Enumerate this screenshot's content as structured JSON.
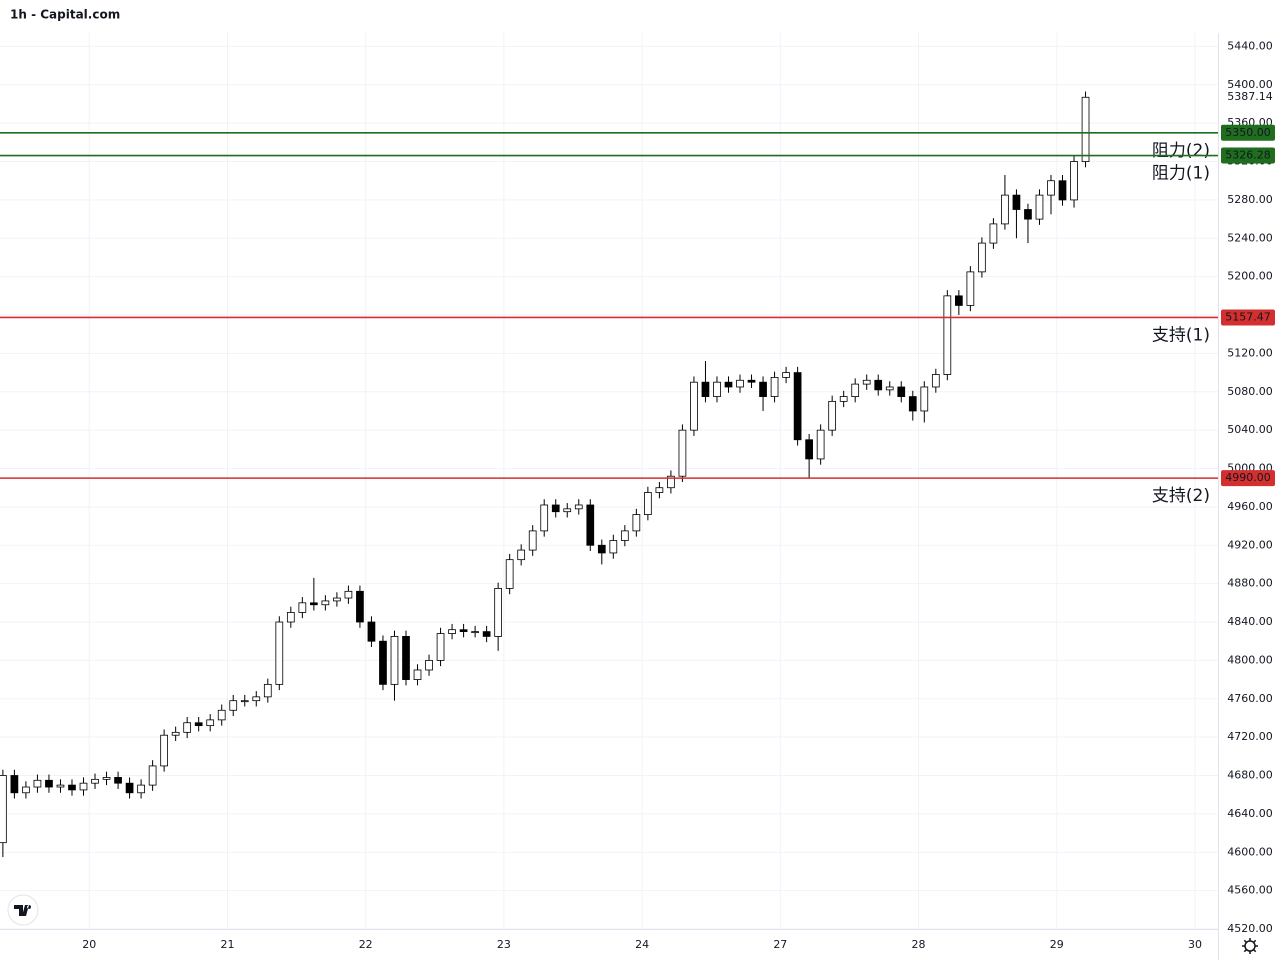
{
  "chart_data": {
    "type": "candlestick",
    "title": "1h - Capital.com",
    "up_color": "#ffffff",
    "down_color": "#000000",
    "wick_color": "#000000",
    "grid": true,
    "x": [
      -15,
      -13,
      -11,
      -9,
      -7,
      -5,
      -3,
      -1,
      1,
      3,
      5,
      7,
      9,
      11,
      13,
      15,
      17,
      19,
      21,
      23,
      25,
      27,
      29,
      31,
      33,
      35,
      37,
      39,
      41,
      43,
      45,
      47,
      49,
      51,
      53,
      55,
      57,
      59,
      61,
      63,
      65,
      67,
      69,
      71,
      73,
      75,
      77,
      79,
      81,
      83,
      85,
      87,
      89,
      91,
      93,
      95,
      97,
      99,
      101,
      103,
      105,
      107,
      109,
      111,
      113,
      115,
      117,
      119,
      121,
      123,
      125,
      127,
      129,
      131,
      133,
      135,
      137,
      139,
      141,
      143,
      145,
      147,
      149,
      151,
      153,
      155,
      157,
      159,
      161,
      163,
      165,
      167,
      169,
      171,
      173
    ],
    "open": [
      4610,
      4680,
      4662,
      4668,
      4675,
      4668,
      4670,
      4665,
      4672,
      4676,
      4678,
      4672,
      4662,
      4670,
      4690,
      4722,
      4725,
      4735,
      4732,
      4738,
      4748,
      4758,
      4758,
      4762,
      4775,
      4840,
      4850,
      4860,
      4858,
      4862,
      4865,
      4872,
      4840,
      4820,
      4775,
      4825,
      4780,
      4790,
      4800,
      4828,
      4832,
      4830,
      4830,
      4825,
      4875,
      4905,
      4915,
      4935,
      4962,
      4955,
      4958,
      4962,
      4920,
      4912,
      4925,
      4935,
      4952,
      4975,
      4980,
      4992,
      5040,
      5090,
      5075,
      5090,
      5085,
      5092,
      5090,
      5075,
      5095,
      5100,
      5030,
      5010,
      5040,
      5070,
      5075,
      5088,
      5092,
      5082,
      5085,
      5075,
      5060,
      5085,
      5098,
      5180,
      5170,
      5205,
      5235,
      5255,
      5285,
      5270,
      5260,
      5285,
      5300,
      5280,
      5320
    ],
    "high": [
      4686,
      4686,
      4674,
      4681,
      4681,
      4676,
      4676,
      4678,
      4682,
      4684,
      4684,
      4678,
      4676,
      4696,
      4728,
      4731,
      4741,
      4741,
      4744,
      4754,
      4764,
      4764,
      4768,
      4781,
      4846,
      4856,
      4866,
      4886,
      4868,
      4871,
      4878,
      4878,
      4846,
      4826,
      4831,
      4831,
      4796,
      4806,
      4834,
      4838,
      4838,
      4836,
      4836,
      4881,
      4911,
      4921,
      4941,
      4968,
      4968,
      4964,
      4968,
      4968,
      4926,
      4931,
      4941,
      4958,
      4981,
      4986,
      4998,
      5046,
      5096,
      5112,
      5096,
      5096,
      5098,
      5098,
      5096,
      5101,
      5106,
      5106,
      5036,
      5046,
      5076,
      5081,
      5094,
      5098,
      5098,
      5091,
      5091,
      5081,
      5091,
      5104,
      5186,
      5186,
      5211,
      5241,
      5261,
      5306,
      5291,
      5276,
      5291,
      5306,
      5306,
      5326,
      5393
    ],
    "low": [
      4595,
      4656,
      4656,
      4662,
      4662,
      4662,
      4659,
      4659,
      4666,
      4670,
      4666,
      4656,
      4656,
      4664,
      4684,
      4716,
      4719,
      4726,
      4726,
      4732,
      4742,
      4752,
      4752,
      4756,
      4769,
      4834,
      4844,
      4852,
      4852,
      4856,
      4859,
      4834,
      4814,
      4769,
      4758,
      4774,
      4774,
      4784,
      4794,
      4822,
      4824,
      4824,
      4819,
      4810,
      4869,
      4899,
      4909,
      4929,
      4949,
      4949,
      4952,
      4914,
      4900,
      4906,
      4919,
      4929,
      4946,
      4969,
      4974,
      4986,
      5034,
      5069,
      5069,
      5079,
      5079,
      5084,
      5060,
      5069,
      5089,
      5024,
      4990,
      5004,
      5034,
      5064,
      5069,
      5082,
      5076,
      5076,
      5069,
      5050,
      5048,
      5079,
      5092,
      5160,
      5164,
      5199,
      5229,
      5249,
      5240,
      5235,
      5254,
      5265,
      5274,
      5272,
      5314
    ],
    "close": [
      4680,
      4662,
      4668,
      4675,
      4668,
      4670,
      4665,
      4672,
      4676,
      4678,
      4672,
      4662,
      4670,
      4690,
      4722,
      4725,
      4735,
      4732,
      4738,
      4748,
      4758,
      4758,
      4762,
      4775,
      4840,
      4850,
      4860,
      4858,
      4862,
      4865,
      4872,
      4840,
      4820,
      4775,
      4825,
      4780,
      4790,
      4800,
      4828,
      4832,
      4830,
      4830,
      4825,
      4875,
      4905,
      4915,
      4935,
      4962,
      4955,
      4958,
      4962,
      4920,
      4912,
      4925,
      4935,
      4952,
      4975,
      4980,
      4992,
      5040,
      5090,
      5075,
      5090,
      5085,
      5092,
      5090,
      5075,
      5095,
      5100,
      5030,
      5010,
      5040,
      5070,
      5075,
      5088,
      5092,
      5082,
      5085,
      5075,
      5060,
      5085,
      5098,
      5180,
      5170,
      5205,
      5235,
      5255,
      5285,
      5270,
      5260,
      5285,
      5300,
      5280,
      5320,
      5387
    ],
    "last_price": {
      "value": 5387.14,
      "label": "5387.14"
    },
    "levels": [
      {
        "name": "阻力(2)",
        "value": 5350,
        "label": "5350.00",
        "color": "#1e6e1e"
      },
      {
        "name": "阻力(1)",
        "value": 5326.28,
        "label": "5326.28",
        "color": "#1e6e1e"
      },
      {
        "name": "支持(1)",
        "value": 5157.47,
        "label": "5157.47",
        "color": "#d32f2f"
      },
      {
        "name": "支持(2)",
        "value": 4990,
        "label": "4990.00",
        "color": "#d32f2f"
      }
    ],
    "xlim": [
      -15.5,
      196
    ],
    "xticks": [
      {
        "value": 0,
        "label": "20"
      },
      {
        "value": 24,
        "label": "21"
      },
      {
        "value": 48,
        "label": "22"
      },
      {
        "value": 72,
        "label": "23"
      },
      {
        "value": 96,
        "label": "24"
      },
      {
        "value": 120,
        "label": "27"
      },
      {
        "value": 144,
        "label": "28"
      },
      {
        "value": 168,
        "label": "29"
      },
      {
        "value": 192,
        "label": "30"
      }
    ],
    "ylim": [
      4520,
      5454
    ],
    "yticks": [
      {
        "value": 4520,
        "label": "4520.00"
      },
      {
        "value": 4560,
        "label": "4560.00"
      },
      {
        "value": 4600,
        "label": "4600.00"
      },
      {
        "value": 4640,
        "label": "4640.00"
      },
      {
        "value": 4680,
        "label": "4680.00"
      },
      {
        "value": 4720,
        "label": "4720.00"
      },
      {
        "value": 4760,
        "label": "4760.00"
      },
      {
        "value": 4800,
        "label": "4800.00"
      },
      {
        "value": 4840,
        "label": "4840.00"
      },
      {
        "value": 4880,
        "label": "4880.00"
      },
      {
        "value": 4920,
        "label": "4920.00"
      },
      {
        "value": 4960,
        "label": "4960.00"
      },
      {
        "value": 5000,
        "label": "5000.00"
      },
      {
        "value": 5040,
        "label": "5040.00"
      },
      {
        "value": 5080,
        "label": "5080.00"
      },
      {
        "value": 5120,
        "label": "5120.00"
      },
      {
        "value": 5160,
        "label": "5160.00"
      },
      {
        "value": 5200,
        "label": "5200.00"
      },
      {
        "value": 5240,
        "label": "5240.00"
      },
      {
        "value": 5280,
        "label": "5280.00"
      },
      {
        "value": 5320,
        "label": "5320.00"
      },
      {
        "value": 5360,
        "label": "5360.00"
      },
      {
        "value": 5400,
        "label": "5400.00"
      },
      {
        "value": 5440,
        "label": "5440.00"
      }
    ]
  }
}
